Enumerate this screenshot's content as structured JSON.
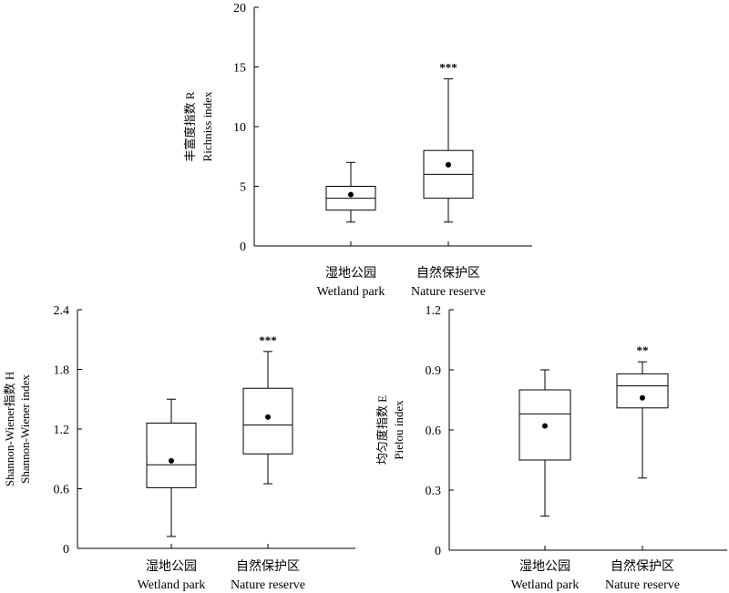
{
  "chart_data": [
    {
      "type": "boxplot",
      "ylabel": "丰富度指数 R",
      "ylabel2": "Richniss index",
      "ylim": [
        0,
        20
      ],
      "yticks": [
        0,
        5,
        10,
        15,
        20
      ],
      "tick_labels": [
        "0",
        "5",
        "10",
        "15",
        "20"
      ],
      "categories": [
        "湿地公园",
        "自然保护区"
      ],
      "categories_en": [
        "Wetland park",
        "Nature reserve"
      ],
      "boxes": [
        {
          "min": 2,
          "q1": 3,
          "median": 4,
          "q3": 5,
          "max": 7,
          "mean": 4.3,
          "sig": ""
        },
        {
          "min": 2,
          "q1": 4,
          "median": 6,
          "q3": 8,
          "max": 14,
          "mean": 6.8,
          "sig": "***"
        }
      ]
    },
    {
      "type": "boxplot",
      "ylabel": "Shannon-Wiener指数 H",
      "ylabel2": "Shannon-Wiener index",
      "ylim": [
        0,
        2.4
      ],
      "yticks": [
        0,
        0.6,
        1.2,
        1.8,
        2.4
      ],
      "tick_labels": [
        "0",
        "0.6",
        "1.2",
        "1.8",
        "2.4"
      ],
      "categories": [
        "湿地公园",
        "自然保护区"
      ],
      "categories_en": [
        "Wetland park",
        "Nature reserve"
      ],
      "boxes": [
        {
          "min": 0.12,
          "q1": 0.61,
          "median": 0.84,
          "q3": 1.26,
          "max": 1.5,
          "mean": 0.88,
          "sig": ""
        },
        {
          "min": 0.65,
          "q1": 0.95,
          "median": 1.24,
          "q3": 1.61,
          "max": 1.98,
          "mean": 1.32,
          "sig": "***"
        }
      ]
    },
    {
      "type": "boxplot",
      "ylabel": "均匀度指数 E",
      "ylabel2": "Pielou index",
      "ylim": [
        0,
        1.2
      ],
      "yticks": [
        0,
        0.3,
        0.6,
        0.9,
        1.2
      ],
      "tick_labels": [
        "0",
        "0.3",
        "0.6",
        "0.9",
        "1.2"
      ],
      "categories": [
        "湿地公园",
        "自然保护区"
      ],
      "categories_en": [
        "Wetland park",
        "Nature reserve"
      ],
      "boxes": [
        {
          "min": 0.17,
          "q1": 0.45,
          "median": 0.68,
          "q3": 0.8,
          "max": 0.9,
          "mean": 0.62,
          "sig": ""
        },
        {
          "min": 0.36,
          "q1": 0.71,
          "median": 0.82,
          "q3": 0.88,
          "max": 0.94,
          "mean": 0.76,
          "sig": "**"
        }
      ]
    }
  ]
}
